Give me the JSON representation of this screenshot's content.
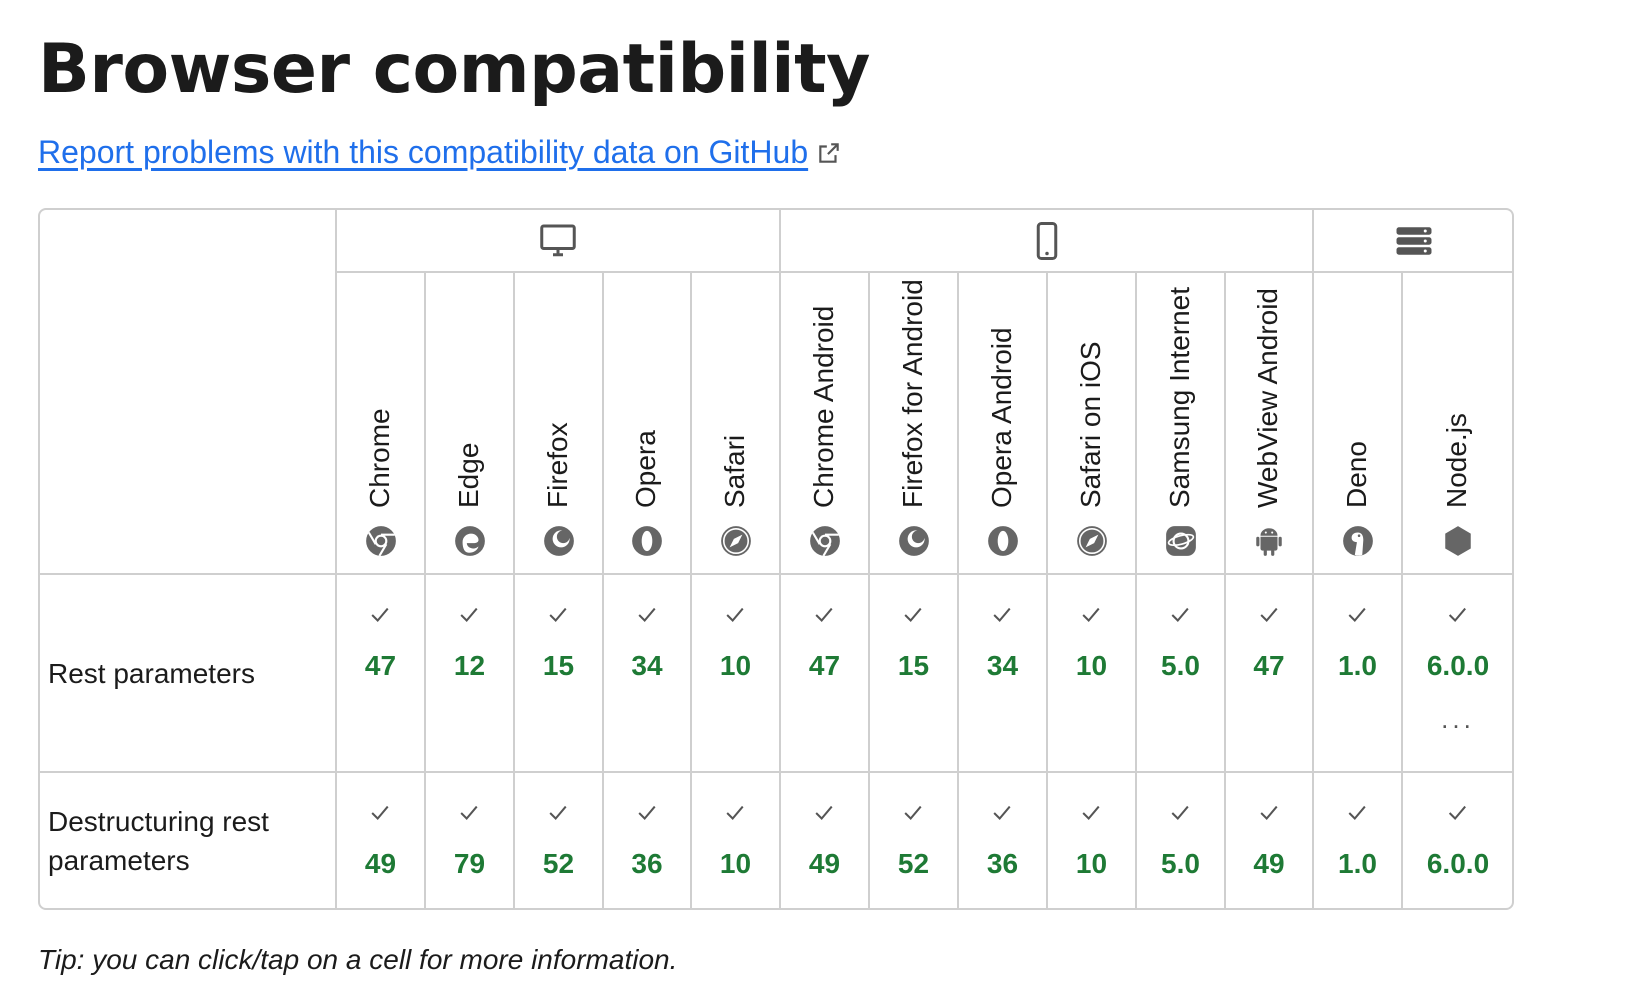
{
  "title": "Browser compatibility",
  "report_link": "Report problems with this compatibility data on GitHub",
  "platforms": [
    {
      "name": "desktop",
      "icon": "desktop-icon"
    },
    {
      "name": "mobile",
      "icon": "mobile-icon"
    },
    {
      "name": "server",
      "icon": "server-icon"
    }
  ],
  "browsers": [
    {
      "label": "Chrome",
      "icon": "chrome-icon"
    },
    {
      "label": "Edge",
      "icon": "edge-icon"
    },
    {
      "label": "Firefox",
      "icon": "firefox-icon"
    },
    {
      "label": "Opera",
      "icon": "opera-icon"
    },
    {
      "label": "Safari",
      "icon": "safari-icon"
    },
    {
      "label": "Chrome Android",
      "icon": "chrome-icon"
    },
    {
      "label": "Firefox for Android",
      "icon": "firefox-icon"
    },
    {
      "label": "Opera Android",
      "icon": "opera-icon"
    },
    {
      "label": "Safari on iOS",
      "icon": "safari-icon"
    },
    {
      "label": "Samsung Internet",
      "icon": "samsung-internet-icon"
    },
    {
      "label": "WebView Android",
      "icon": "android-icon"
    },
    {
      "label": "Deno",
      "icon": "deno-icon"
    },
    {
      "label": "Node.js",
      "icon": "nodejs-icon"
    }
  ],
  "features": [
    {
      "name": "Rest parameters",
      "versions": [
        "47",
        "12",
        "15",
        "34",
        "10",
        "47",
        "15",
        "34",
        "10",
        "5.0",
        "47",
        "1.0",
        "6.0.0"
      ],
      "more_marker": "...",
      "more_column": 12
    },
    {
      "name": "Destructuring rest parameters",
      "versions": [
        "49",
        "79",
        "52",
        "36",
        "10",
        "49",
        "52",
        "36",
        "10",
        "5.0",
        "49",
        "1.0",
        "6.0.0"
      ]
    }
  ],
  "tip": "Tip: you can click/tap on a cell for more information.",
  "colors": {
    "link": "#1f6feb",
    "supported": "#1e7a35",
    "border": "#cfcfcf"
  }
}
